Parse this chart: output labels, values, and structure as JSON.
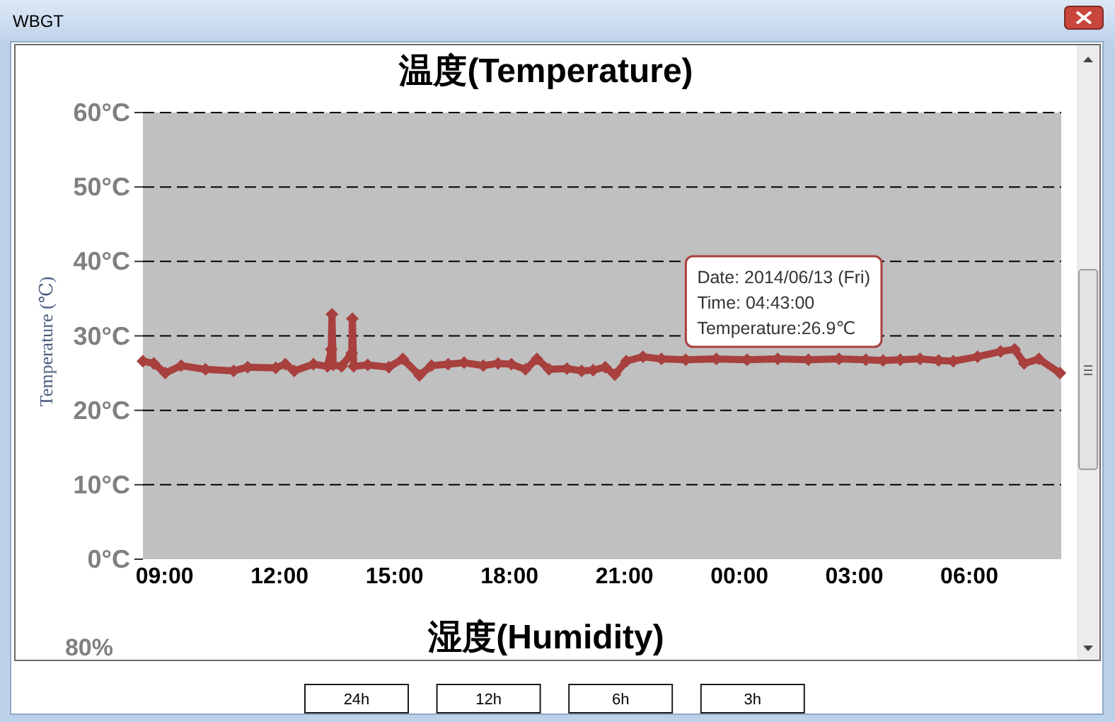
{
  "chart_data": [
    {
      "type": "line",
      "title": "温度(Temperature)",
      "ylabel": "Temperature (℃)",
      "x": [
        "2014-06-12T08:26",
        "2014-06-12T08:43",
        "2014-06-12T09:01",
        "2014-06-12T09:26",
        "2014-06-12T10:04",
        "2014-06-12T10:48",
        "2014-06-12T11:10",
        "2014-06-12T11:54",
        "2014-06-12T12:09",
        "2014-06-12T12:23",
        "2014-06-12T12:53",
        "2014-06-12T13:15",
        "2014-06-12T13:21",
        "2014-06-12T13:22",
        "2014-06-12T13:24",
        "2014-06-12T13:37",
        "2014-06-12T13:53",
        "2014-06-12T13:54",
        "2014-06-12T13:56",
        "2014-06-12T14:18",
        "2014-06-12T14:51",
        "2014-06-12T15:13",
        "2014-06-12T15:39",
        "2014-06-12T15:58",
        "2014-06-12T16:24",
        "2014-06-12T16:49",
        "2014-06-12T17:19",
        "2014-06-12T17:42",
        "2014-06-12T18:03",
        "2014-06-12T18:25",
        "2014-06-12T18:43",
        "2014-06-12T19:02",
        "2014-06-12T19:30",
        "2014-06-12T19:53",
        "2014-06-12T20:11",
        "2014-06-12T20:30",
        "2014-06-12T20:45",
        "2014-06-12T21:03",
        "2014-06-12T21:29",
        "2014-06-12T21:58",
        "2014-06-12T22:36",
        "2014-06-12T23:24",
        "2014-06-13T00:12",
        "2014-06-13T01:00",
        "2014-06-13T01:48",
        "2014-06-13T02:36",
        "2014-06-13T03:18",
        "2014-06-13T03:45",
        "2014-06-13T04:12",
        "2014-06-13T04:43",
        "2014-06-13T05:12",
        "2014-06-13T05:35",
        "2014-06-13T06:13",
        "2014-06-13T06:49",
        "2014-06-13T07:11",
        "2014-06-13T07:26",
        "2014-06-13T07:49",
        "2014-06-13T08:22"
      ],
      "series": [
        {
          "color": "#a8403e",
          "values": [
            26.6,
            26.3,
            25.0,
            26.0,
            25.5,
            25.3,
            25.8,
            25.7,
            26.2,
            25.3,
            26.2,
            25.9,
            28.2,
            32.9,
            26.1,
            25.9,
            27.7,
            32.3,
            25.9,
            26.1,
            25.8,
            26.9,
            24.7,
            26.0,
            26.2,
            26.4,
            26.0,
            26.3,
            26.2,
            25.5,
            26.9,
            25.5,
            25.6,
            25.3,
            25.4,
            25.8,
            24.8,
            26.6,
            27.2,
            26.9,
            26.8,
            26.9,
            26.8,
            26.9,
            26.8,
            26.9,
            26.8,
            26.7,
            26.8,
            26.9,
            26.7,
            26.6,
            27.2,
            27.9,
            28.2,
            26.3,
            26.9,
            25.0
          ]
        }
      ],
      "xlim": [
        "2014-06-12T08:26",
        "2014-06-13T08:24"
      ],
      "xticks": [
        {
          "value": "2014-06-12T09:00",
          "label": "09:00"
        },
        {
          "value": "2014-06-12T12:00",
          "label": "12:00"
        },
        {
          "value": "2014-06-12T15:00",
          "label": "15:00"
        },
        {
          "value": "2014-06-12T18:00",
          "label": "18:00"
        },
        {
          "value": "2014-06-12T21:00",
          "label": "21:00"
        },
        {
          "value": "2014-06-13T00:00",
          "label": "00:00"
        },
        {
          "value": "2014-06-13T03:00",
          "label": "03:00"
        },
        {
          "value": "2014-06-13T06:00",
          "label": "06:00"
        }
      ],
      "ylim": [
        0,
        60
      ],
      "yticks": [
        {
          "value": 0,
          "label": "0°C"
        },
        {
          "value": 10,
          "label": "10°C"
        },
        {
          "value": 20,
          "label": "20°C"
        },
        {
          "value": 30,
          "label": "30°C"
        },
        {
          "value": 40,
          "label": "40°C"
        },
        {
          "value": 50,
          "label": "50°C"
        },
        {
          "value": 60,
          "label": "60°C"
        }
      ],
      "grid": "y",
      "marker": "diamond",
      "line_style": "solid",
      "annotations": [
        "WBGT",
        "Date: 2014/06/13 (Fri)",
        "Time: 04:43:00",
        "Temperature:26.9℃"
      ]
    },
    {
      "type": "other",
      "title": "湿度(Humidity)",
      "annotations": [
        "80%",
        "24h",
        "12h",
        "6h",
        "3h"
      ]
    }
  ]
}
